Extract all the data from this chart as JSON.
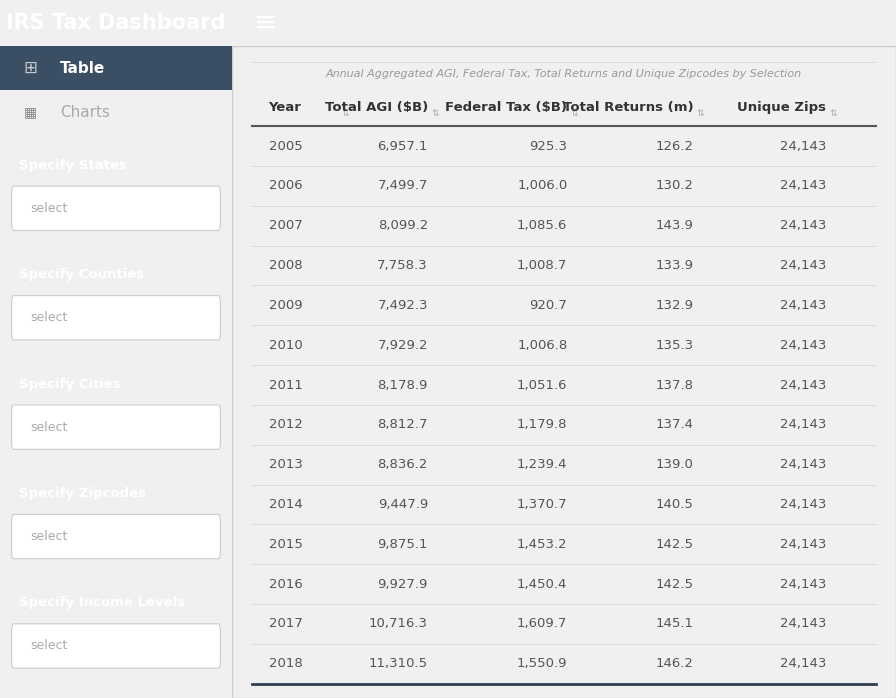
{
  "title": "IRS Tax Dashboard",
  "header_bg": "#4a90a4",
  "sidebar_bg": "#2c3e50",
  "main_bg": "#f0f0f0",
  "table_bg": "#ffffff",
  "table_title": "Annual Aggregated AGI, Federal Tax, Total Returns and Unique Zipcodes by Selection",
  "col_headers": [
    "Year",
    "Total AGI ($B)",
    "Federal Tax ($B)",
    "Total Returns (m)",
    "Unique Zips"
  ],
  "rows": [
    [
      2005,
      "6,957.1",
      "925.3",
      "126.2",
      "24,143"
    ],
    [
      2006,
      "7,499.7",
      "1,006.0",
      "130.2",
      "24,143"
    ],
    [
      2007,
      "8,099.2",
      "1,085.6",
      "143.9",
      "24,143"
    ],
    [
      2008,
      "7,758.3",
      "1,008.7",
      "133.9",
      "24,143"
    ],
    [
      2009,
      "7,492.3",
      "920.7",
      "132.9",
      "24,143"
    ],
    [
      2010,
      "7,929.2",
      "1,006.8",
      "135.3",
      "24,143"
    ],
    [
      2011,
      "8,178.9",
      "1,051.6",
      "137.8",
      "24,143"
    ],
    [
      2012,
      "8,812.7",
      "1,179.8",
      "137.4",
      "24,143"
    ],
    [
      2013,
      "8,836.2",
      "1,239.4",
      "139.0",
      "24,143"
    ],
    [
      2014,
      "9,447.9",
      "1,370.7",
      "140.5",
      "24,143"
    ],
    [
      2015,
      "9,875.1",
      "1,453.2",
      "142.5",
      "24,143"
    ],
    [
      2016,
      "9,927.9",
      "1,450.4",
      "142.5",
      "24,143"
    ],
    [
      2017,
      "10,716.3",
      "1,609.7",
      "145.1",
      "24,143"
    ],
    [
      2018,
      "11,310.5",
      "1,550.9",
      "146.2",
      "24,143"
    ]
  ],
  "sidebar_labels": [
    "Specify States",
    "Specify Counties",
    "Specify Cities",
    "Specify Zipcodes",
    "Specify Income Levels"
  ],
  "nav_header_color": "#4a90a4",
  "table_header_color": "#333333",
  "row_text_color": "#555555",
  "sidebar_text_color": "#ffffff",
  "sidebar_label_color": "#ffffff",
  "select_box_bg": "#ffffff",
  "select_text_color": "#aaaaaa",
  "divider_color": "#dddddd",
  "bottom_border_color": "#2c3e50",
  "header_text_color": "#ffffff",
  "hamburger_color": "#ffffff",
  "table_highlight_bg": "#3a4f63"
}
